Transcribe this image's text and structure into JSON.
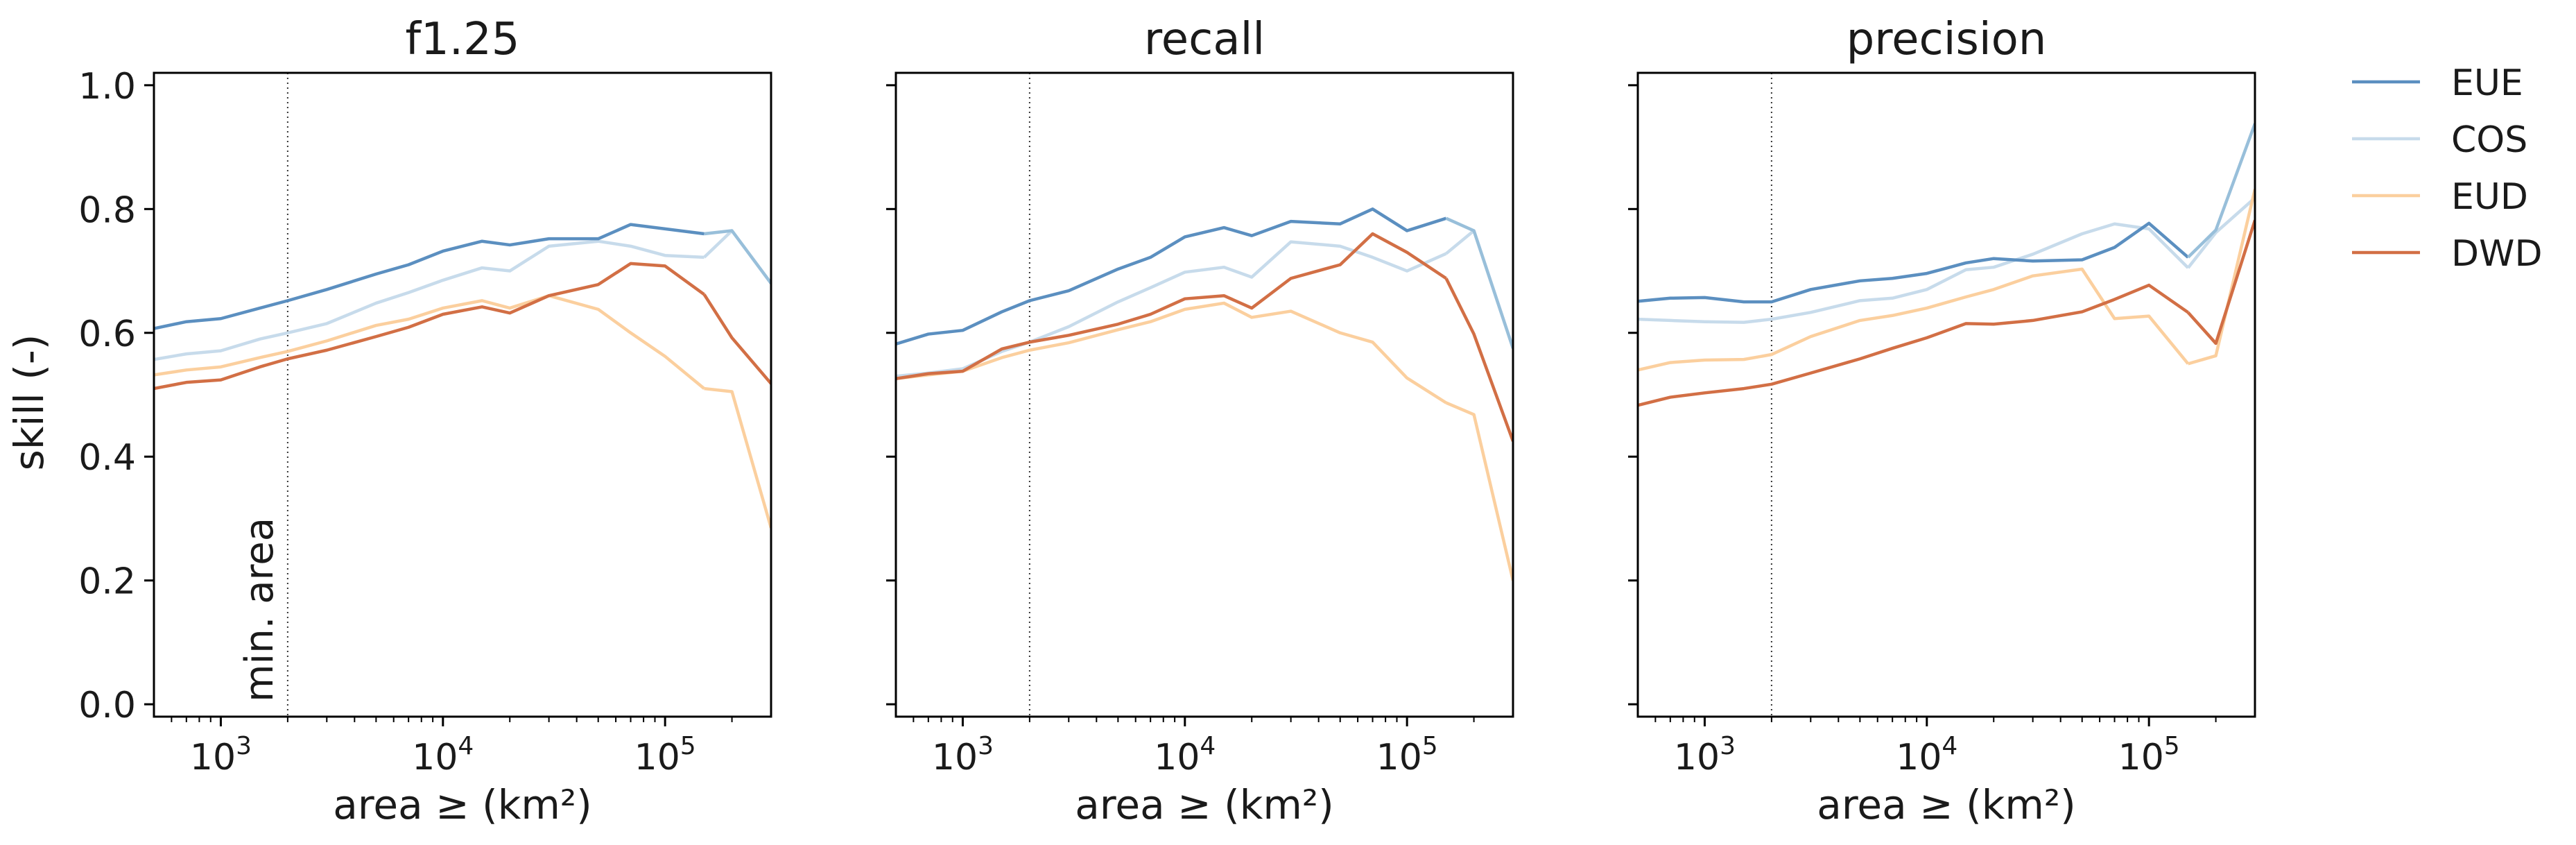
{
  "figure": {
    "ylabel": "skill (-)",
    "xlabel": "area ≥ (km²)",
    "annotation": "min. area"
  },
  "colors": {
    "EUE": "#5b8fc0",
    "COS": "#c7dbeb",
    "EUD": "#fbcf9e",
    "DWD": "#d26f45",
    "EUE_tail": "#98bfda"
  },
  "chart_data": {
    "type": "line",
    "x_scale": "log",
    "xlim": [
      500,
      300000
    ],
    "ylim": [
      -0.02,
      1.02
    ],
    "y_ticks": [
      0.0,
      0.2,
      0.4,
      0.6,
      0.8,
      1.0
    ],
    "y_tick_labels": [
      "0.0",
      "0.2",
      "0.4",
      "0.6",
      "0.8",
      "1.0"
    ],
    "x_ticks": [
      1000,
      10000,
      100000
    ],
    "x_tick_labels": [
      {
        "base": "10",
        "exp": "3"
      },
      {
        "base": "10",
        "exp": "4"
      },
      {
        "base": "10",
        "exp": "5"
      }
    ],
    "min_area": 2000,
    "x": [
      500,
      700,
      1000,
      1500,
      2000,
      3000,
      5000,
      7000,
      10000,
      15000,
      20000,
      30000,
      50000,
      70000,
      100000,
      150000,
      200000,
      300000
    ],
    "legend": [
      "EUE",
      "COS",
      "EUD",
      "DWD"
    ],
    "legend_placement": "outside right",
    "grid": false,
    "panels": [
      {
        "title": "f1.25",
        "series": [
          {
            "name": "EUE",
            "values": [
              0.607,
              0.618,
              0.623,
              0.64,
              0.652,
              0.67,
              0.695,
              0.71,
              0.732,
              0.748,
              0.742,
              0.752,
              0.752,
              0.775,
              0.768,
              0.76,
              0.765,
              0.68
            ]
          },
          {
            "name": "COS",
            "values": [
              0.557,
              0.566,
              0.571,
              0.59,
              0.6,
              0.615,
              0.648,
              0.665,
              0.685,
              0.705,
              0.7,
              0.74,
              0.748,
              0.74,
              0.725,
              0.722,
              0.765,
              0.68
            ]
          },
          {
            "name": "EUD",
            "values": [
              0.532,
              0.54,
              0.545,
              0.56,
              0.57,
              0.587,
              0.612,
              0.622,
              0.64,
              0.652,
              0.64,
              0.66,
              0.638,
              0.6,
              0.562,
              0.51,
              0.505,
              0.285
            ]
          },
          {
            "name": "DWD",
            "values": [
              0.51,
              0.52,
              0.524,
              0.545,
              0.558,
              0.572,
              0.594,
              0.609,
              0.63,
              0.642,
              0.632,
              0.66,
              0.678,
              0.712,
              0.708,
              0.662,
              0.592,
              0.518
            ]
          }
        ]
      },
      {
        "title": "recall",
        "series": [
          {
            "name": "EUE",
            "values": [
              0.582,
              0.598,
              0.604,
              0.634,
              0.652,
              0.668,
              0.703,
              0.722,
              0.755,
              0.77,
              0.757,
              0.78,
              0.776,
              0.8,
              0.765,
              0.785,
              0.765,
              0.575
            ]
          },
          {
            "name": "COS",
            "values": [
              0.53,
              0.535,
              0.542,
              0.57,
              0.585,
              0.61,
              0.65,
              0.673,
              0.698,
              0.706,
              0.69,
              0.747,
              0.74,
              0.722,
              0.7,
              0.728,
              0.765,
              0.575
            ]
          },
          {
            "name": "EUD",
            "values": [
              0.526,
              0.532,
              0.538,
              0.56,
              0.572,
              0.584,
              0.605,
              0.618,
              0.638,
              0.648,
              0.625,
              0.635,
              0.6,
              0.585,
              0.527,
              0.487,
              0.468,
              0.2
            ]
          },
          {
            "name": "DWD",
            "values": [
              0.526,
              0.534,
              0.538,
              0.574,
              0.585,
              0.596,
              0.614,
              0.63,
              0.655,
              0.66,
              0.64,
              0.688,
              0.71,
              0.76,
              0.73,
              0.688,
              0.598,
              0.425
            ]
          }
        ]
      },
      {
        "title": "precision",
        "series": [
          {
            "name": "EUE",
            "values": [
              0.651,
              0.656,
              0.657,
              0.65,
              0.65,
              0.67,
              0.684,
              0.688,
              0.696,
              0.713,
              0.72,
              0.716,
              0.718,
              0.738,
              0.777,
              0.722,
              0.766,
              0.938
            ]
          },
          {
            "name": "COS",
            "values": [
              0.622,
              0.62,
              0.618,
              0.617,
              0.622,
              0.633,
              0.652,
              0.656,
              0.67,
              0.702,
              0.706,
              0.727,
              0.76,
              0.776,
              0.768,
              0.705,
              0.762,
              0.818
            ]
          },
          {
            "name": "EUD",
            "values": [
              0.54,
              0.552,
              0.556,
              0.557,
              0.565,
              0.594,
              0.62,
              0.628,
              0.64,
              0.658,
              0.67,
              0.692,
              0.703,
              0.623,
              0.627,
              0.55,
              0.563,
              0.832
            ]
          },
          {
            "name": "DWD",
            "values": [
              0.483,
              0.496,
              0.503,
              0.51,
              0.517,
              0.535,
              0.558,
              0.575,
              0.592,
              0.615,
              0.614,
              0.62,
              0.634,
              0.654,
              0.677,
              0.633,
              0.583,
              0.782
            ]
          }
        ]
      }
    ]
  }
}
